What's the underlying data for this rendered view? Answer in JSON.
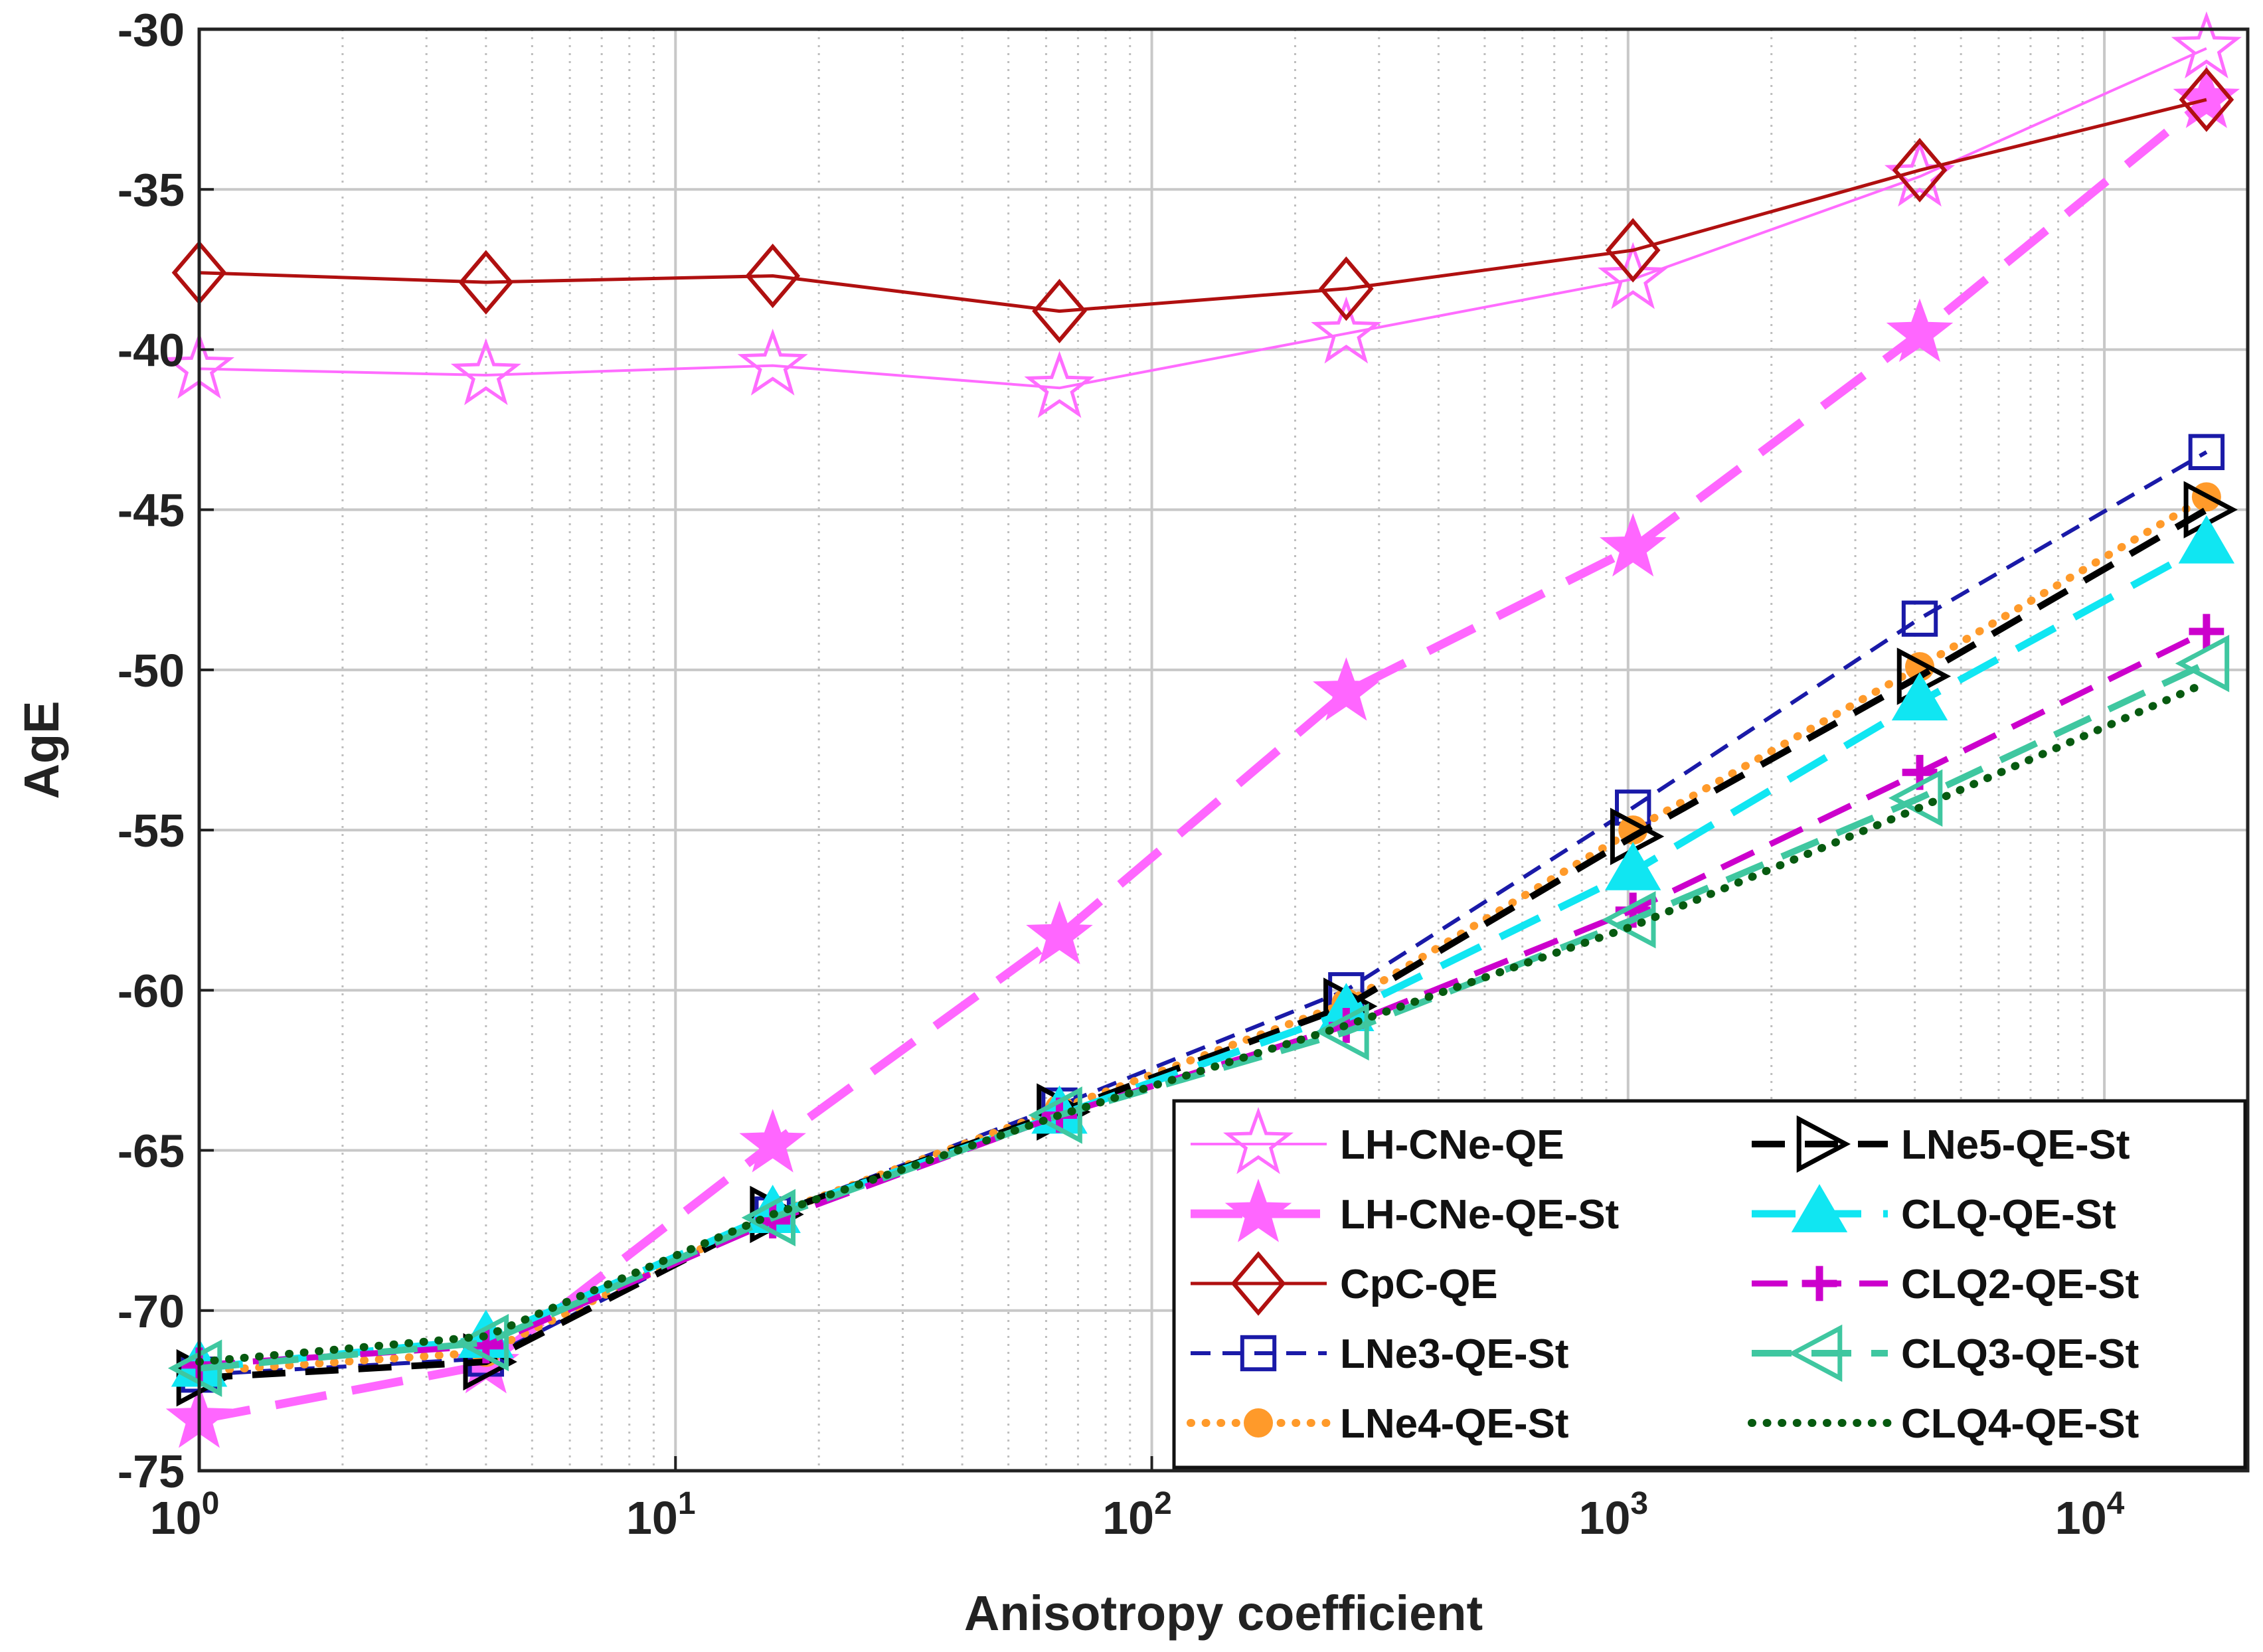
{
  "chart_data": {
    "type": "line",
    "xscale": "log",
    "xlabel": "Anisotropy coefficient",
    "ylabel": "AgE",
    "xlim": [
      1,
      20000
    ],
    "ylim": [
      -75,
      -30
    ],
    "yticks": [
      -30,
      -35,
      -40,
      -45,
      -50,
      -55,
      -60,
      -65,
      -70,
      -75
    ],
    "ytick_labels": [
      "-30",
      "-35",
      "-40",
      "-45",
      "-50",
      "-55",
      "-60",
      "-65",
      "-70",
      "-75"
    ],
    "xticks": [
      {
        "base": "10",
        "exp": "0"
      },
      {
        "base": "10",
        "exp": "1"
      },
      {
        "base": "10",
        "exp": "2"
      },
      {
        "base": "10",
        "exp": "3"
      },
      {
        "base": "10",
        "exp": "4"
      }
    ],
    "grid": true,
    "legend_position": "bottom-right",
    "x": [
      1,
      4,
      16,
      64,
      256,
      1024,
      4096,
      16384
    ],
    "series": [
      {
        "name": "LH-CNe-QE",
        "color": "#ff6cff",
        "dash": "solid",
        "marker": "star-open",
        "width": 4,
        "values": [
          -40.6,
          -40.8,
          -40.5,
          -41.2,
          -39.5,
          -37.8,
          -34.6,
          -30.6
        ]
      },
      {
        "name": "LH-CNe-QE-St",
        "color": "#ff66ff",
        "dash": "dash-long",
        "marker": "star-filled",
        "width": 13,
        "values": [
          -73.4,
          -71.7,
          -64.8,
          -58.3,
          -50.7,
          -46.2,
          -39.5,
          -32.2
        ]
      },
      {
        "name": "CpC-QE",
        "color": "#b01010",
        "dash": "solid",
        "marker": "diamond-open",
        "width": 5,
        "values": [
          -37.6,
          -37.9,
          -37.7,
          -38.8,
          -38.1,
          -36.9,
          -34.4,
          -32.2
        ]
      },
      {
        "name": "LNe3-QE-St",
        "color": "#1a1aa8",
        "dash": "dash-medium",
        "marker": "square-open",
        "width": 6,
        "values": [
          -72.0,
          -71.5,
          -67.0,
          -63.6,
          -60.0,
          -54.3,
          -48.4,
          -43.2
        ]
      },
      {
        "name": "LNe4-QE-St",
        "color": "#ff9a2a",
        "dash": "dotted",
        "marker": "circle-filled",
        "width": 12,
        "values": [
          -71.9,
          -71.3,
          -67.0,
          -63.7,
          -60.4,
          -55.0,
          -49.9,
          -44.6
        ]
      },
      {
        "name": "LNe5-QE-St",
        "color": "#000000",
        "dash": "dash-medium",
        "marker": "triangle-right-open",
        "width": 10,
        "values": [
          -72.1,
          -71.6,
          -67.0,
          -63.8,
          -60.5,
          -55.2,
          -50.2,
          -45.0
        ]
      },
      {
        "name": "CLQ-QE-St",
        "color": "#10e6f2",
        "dash": "dash-long",
        "marker": "triangle-up-filled",
        "width": 11,
        "values": [
          -71.8,
          -70.9,
          -67.0,
          -63.9,
          -60.7,
          -56.3,
          -51.0,
          -46.1
        ]
      },
      {
        "name": "CLQ2-QE-St",
        "color": "#cc00cc",
        "dash": "dash-long",
        "marker": "plus",
        "width": 9,
        "values": [
          -71.7,
          -71.1,
          -67.2,
          -63.9,
          -61.1,
          -57.5,
          -53.2,
          -48.8
        ]
      },
      {
        "name": "CLQ3-QE-St",
        "color": "#3fc7a0",
        "dash": "dash-long",
        "marker": "triangle-left-open",
        "width": 10,
        "values": [
          -71.8,
          -71.0,
          -67.1,
          -63.9,
          -61.3,
          -57.8,
          -54.0,
          -49.8
        ]
      },
      {
        "name": "CLQ4-QE-St",
        "color": "#075a10",
        "dash": "dotted",
        "marker": "none",
        "width": 12,
        "values": [
          -71.6,
          -70.8,
          -67.0,
          -63.9,
          -61.1,
          -58.0,
          -54.3,
          -50.4
        ]
      }
    ]
  }
}
